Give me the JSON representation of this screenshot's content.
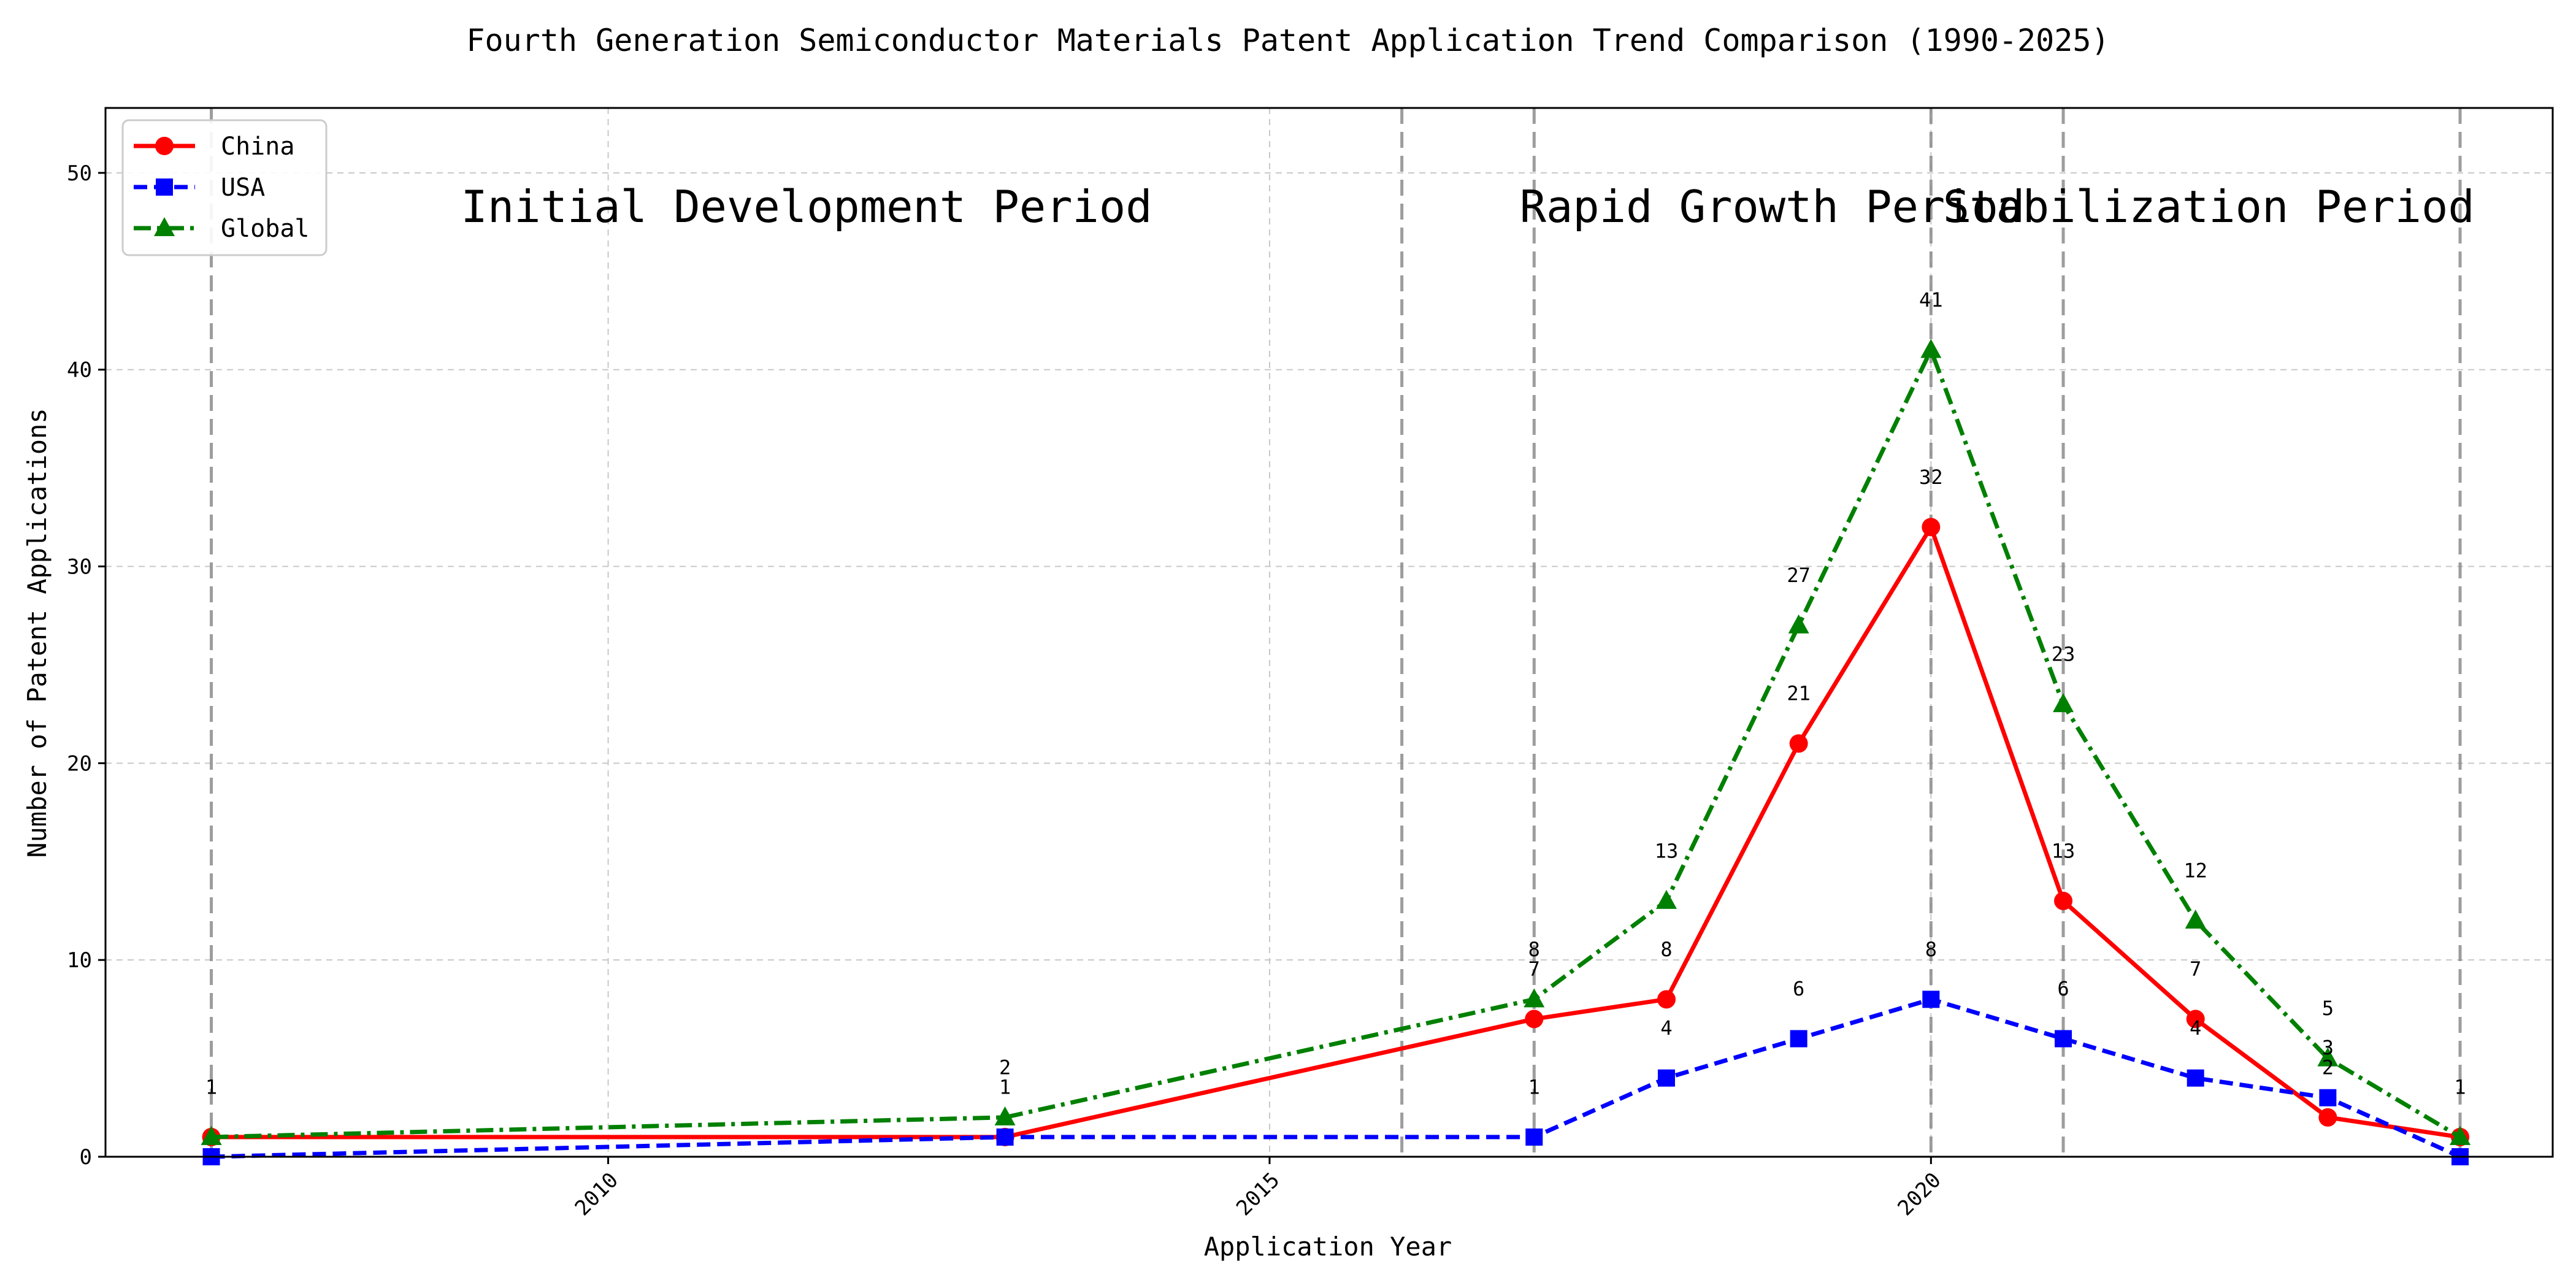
{
  "chart_data": {
    "type": "line",
    "title": "Fourth Generation Semiconductor Materials Patent Application Trend Comparison (1990-2025)",
    "xlabel": "Application Year",
    "ylabel": "Number of Patent Applications",
    "xlim": [
      2006.2,
      2024.7
    ],
    "ylim": [
      0,
      53.3
    ],
    "x_ticks": [
      2010,
      2015,
      2020
    ],
    "y_ticks": [
      0,
      10,
      20,
      30,
      40,
      50
    ],
    "grid": true,
    "legend_position": "top-left",
    "period_lines": [
      2007,
      2016,
      2017,
      2020,
      2021,
      2024
    ],
    "period_labels": [
      {
        "text": "Initial Development Period",
        "x": 2011.5
      },
      {
        "text": "Rapid Growth Period",
        "x": 2018.8
      },
      {
        "text": "Stabilization Period",
        "x": 2022.1
      }
    ],
    "series": [
      {
        "name": "China",
        "color": "#ff0000",
        "dash": "solid",
        "marker": "circle",
        "x": [
          2007,
          2013,
          2017,
          2018,
          2019,
          2020,
          2021,
          2022,
          2023,
          2024
        ],
        "y": [
          1,
          1,
          7,
          8,
          21,
          32,
          13,
          7,
          2,
          1
        ]
      },
      {
        "name": "USA",
        "color": "#0000ff",
        "dash": "dashed",
        "marker": "square",
        "x": [
          2007,
          2013,
          2017,
          2018,
          2019,
          2020,
          2021,
          2022,
          2023,
          2024
        ],
        "y": [
          0,
          1,
          1,
          4,
          6,
          8,
          6,
          4,
          3,
          0
        ]
      },
      {
        "name": "Global",
        "color": "#008000",
        "dash": "dashdot",
        "marker": "triangle",
        "x": [
          2007,
          2013,
          2017,
          2018,
          2019,
          2020,
          2021,
          2022,
          2023,
          2024
        ],
        "y": [
          1,
          2,
          8,
          13,
          27,
          41,
          23,
          12,
          5,
          1
        ]
      }
    ],
    "data_labels": [
      {
        "text": "1",
        "x": 2007,
        "y": 3.2,
        "color": "#000000"
      },
      {
        "text": "2",
        "x": 2013,
        "y": 4.2,
        "color": "#000000"
      },
      {
        "text": "1",
        "x": 2013,
        "y": 3.2,
        "color": "#0000ff"
      },
      {
        "text": "8",
        "x": 2017,
        "y": 10.2,
        "color": "#000000"
      },
      {
        "text": "7",
        "x": 2017,
        "y": 9.2,
        "color": "#000000"
      },
      {
        "text": "1",
        "x": 2017,
        "y": 3.2,
        "color": "#0000ff"
      },
      {
        "text": "13",
        "x": 2018,
        "y": 15.2,
        "color": "#000000"
      },
      {
        "text": "8",
        "x": 2018,
        "y": 10.2,
        "color": "#000000"
      },
      {
        "text": "4",
        "x": 2018,
        "y": 6.2,
        "color": "#0000ff"
      },
      {
        "text": "27",
        "x": 2019,
        "y": 29.2,
        "color": "#000000"
      },
      {
        "text": "21",
        "x": 2019,
        "y": 23.2,
        "color": "#000000"
      },
      {
        "text": "6",
        "x": 2019,
        "y": 8.2,
        "color": "#0000ff"
      },
      {
        "text": "41",
        "x": 2020,
        "y": 43.2,
        "color": "#000000"
      },
      {
        "text": "32",
        "x": 2020,
        "y": 34.2,
        "color": "#000000"
      },
      {
        "text": "8",
        "x": 2020,
        "y": 10.2,
        "color": "#0000ff"
      },
      {
        "text": "23",
        "x": 2021,
        "y": 25.2,
        "color": "#000000"
      },
      {
        "text": "13",
        "x": 2021,
        "y": 15.2,
        "color": "#000000"
      },
      {
        "text": "6",
        "x": 2021,
        "y": 8.2,
        "color": "#0000ff"
      },
      {
        "text": "12",
        "x": 2022,
        "y": 14.2,
        "color": "#000000"
      },
      {
        "text": "7",
        "x": 2022,
        "y": 9.2,
        "color": "#000000"
      },
      {
        "text": "4",
        "x": 2022,
        "y": 6.2,
        "color": "#0000ff"
      },
      {
        "text": "5",
        "x": 2023,
        "y": 7.2,
        "color": "#000000"
      },
      {
        "text": "3",
        "x": 2023,
        "y": 5.2,
        "color": "#0000ff"
      },
      {
        "text": "2",
        "x": 2023,
        "y": 4.2,
        "color": "#000000"
      },
      {
        "text": "1",
        "x": 2024,
        "y": 3.2,
        "color": "#000000"
      }
    ]
  }
}
